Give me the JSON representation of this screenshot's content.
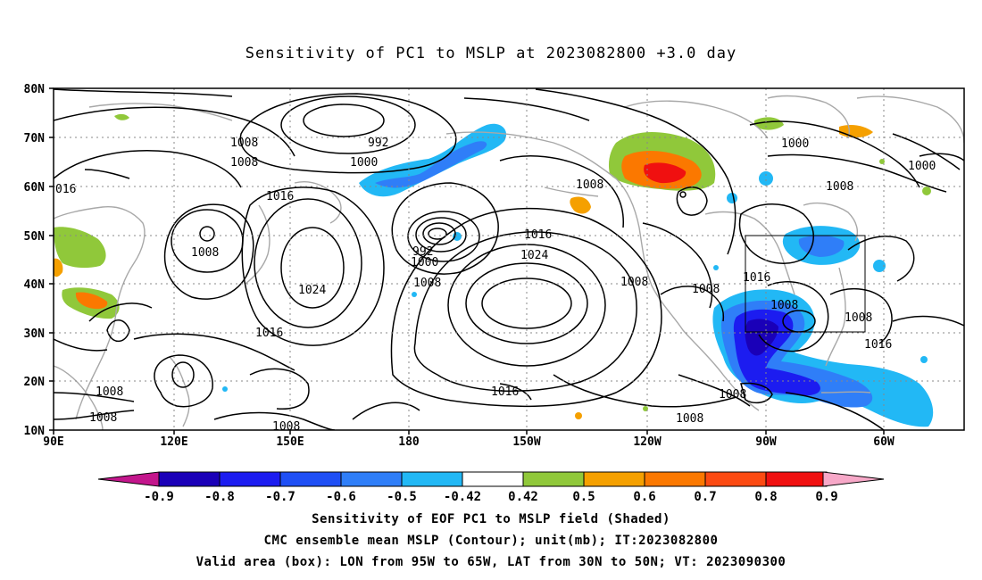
{
  "title": "Sensitivity of PC1 to MSLP at 2023082800 +3.0 day",
  "lat_labels": [
    "80N",
    "70N",
    "60N",
    "50N",
    "40N",
    "30N",
    "20N",
    "10N"
  ],
  "lon_labels": [
    "90E",
    "120E",
    "150E",
    "180",
    "150W",
    "120W",
    "90W",
    "60W"
  ],
  "contour_labels": [
    "016",
    "1008",
    "1008",
    "992",
    "1000",
    "1016",
    "1008",
    "1024",
    "1008",
    "992",
    "1000",
    "1008",
    "1016",
    "1024",
    "1008",
    "1008",
    "1016",
    "1008",
    "1000",
    "1008",
    "1016",
    "1008",
    "1008",
    "1016",
    "1008",
    "1008",
    "1016",
    "1008",
    "1008",
    "1000"
  ],
  "colorbar": {
    "labels": [
      "-0.9",
      "-0.8",
      "-0.7",
      "-0.6",
      "-0.5",
      "-0.42",
      "0.42",
      "0.5",
      "0.6",
      "0.7",
      "0.8",
      "0.9"
    ],
    "colors": [
      "#1a00b8",
      "#1c1cf0",
      "#1f4ff5",
      "#2f7ef8",
      "#22b8f5",
      "#ffffff",
      "#90c83a",
      "#f5a000",
      "#fb7800",
      "#fc4a12",
      "#f01010"
    ],
    "left_arrow_color": "#c3168c",
    "right_arrow_color": "#f7a8c8"
  },
  "footer": {
    "line1": "Sensitivity of EOF PC1 to MSLP field (Shaded)",
    "line2": "CMC ensemble mean MSLP (Contour); unit(mb); IT:2023082800",
    "line3": "Valid area (box): LON from 95W to 65W, LAT from 30N to 50N; VT: 2023090300"
  }
}
